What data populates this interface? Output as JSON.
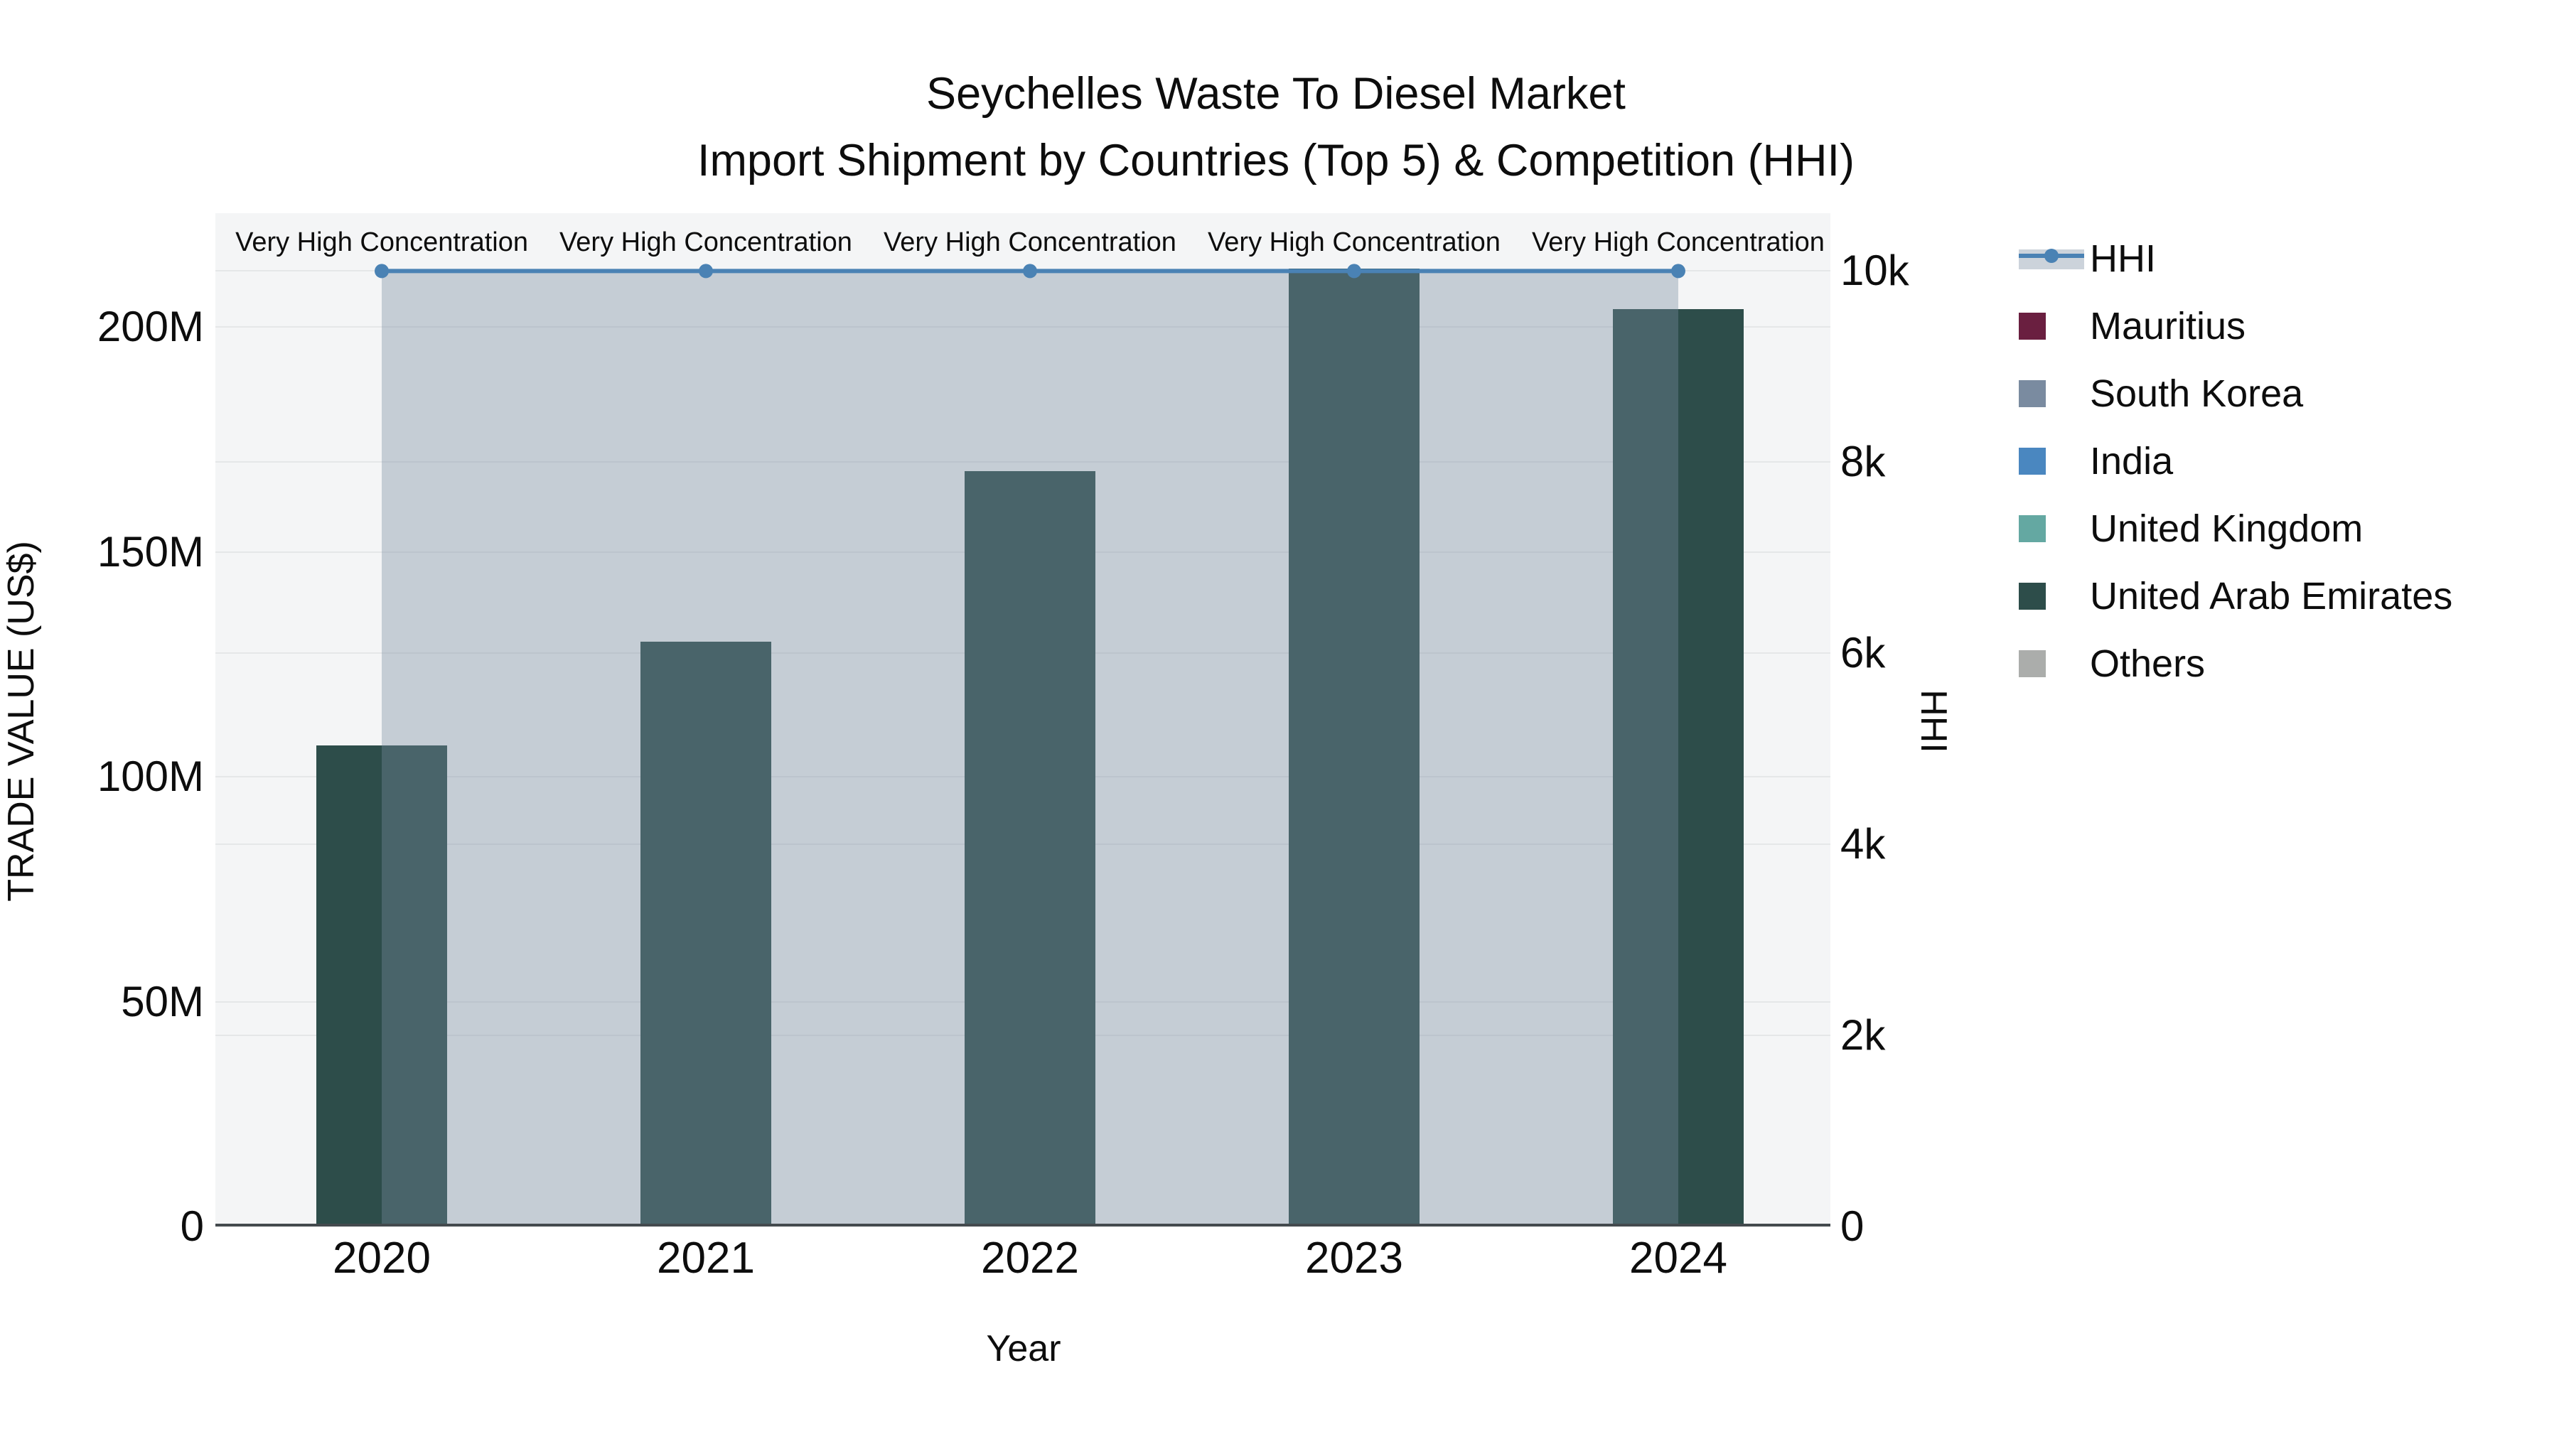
{
  "title": {
    "line1": "Seychelles Waste To Diesel Market",
    "line2": "Import Shipment by Countries (Top 5) & Competition (HHI)"
  },
  "chart_data": {
    "type": "bar+line",
    "title": "Seychelles Waste To Diesel Market Import Shipment by Countries (Top 5) & Competition (HHI)",
    "xlabel": "Year",
    "ylabel_left": "TRADE VALUE (US$)",
    "ylabel_right": "HHI",
    "categories": [
      "2020",
      "2021",
      "2022",
      "2023",
      "2024"
    ],
    "bar_series": [
      {
        "name": "Mauritius",
        "color": "#6a1f40",
        "values_usd": [
          0,
          0,
          0,
          0,
          0
        ]
      },
      {
        "name": "South Korea",
        "color": "#7a8ba0",
        "values_usd": [
          0,
          0,
          0,
          0,
          0
        ]
      },
      {
        "name": "India",
        "color": "#4a87c0",
        "values_usd": [
          0,
          0,
          0,
          0,
          0
        ]
      },
      {
        "name": "United Kingdom",
        "color": "#64a8a2",
        "values_usd": [
          0,
          0,
          0,
          0,
          0
        ]
      },
      {
        "name": "United Arab Emirates",
        "color": "#2d4d4a",
        "values_usd": [
          107000000,
          130000000,
          168000000,
          213000000,
          204000000
        ]
      },
      {
        "name": "Others",
        "color": "#abadab",
        "values_usd": [
          0,
          0,
          0,
          0,
          0
        ]
      }
    ],
    "line_series": {
      "name": "HHI",
      "color": "#4a82b4",
      "area_color": "rgba(122,139,160,0.38)",
      "values": [
        9995,
        9995,
        9995,
        9995,
        9995
      ]
    },
    "point_annotations": [
      "Very High Concentration",
      "Very High Concentration",
      "Very High Concentration",
      "Very High Concentration",
      "Very High Concentration"
    ],
    "y_left_ticks": [
      {
        "label": "0",
        "value": 0
      },
      {
        "label": "50M",
        "value": 50000000
      },
      {
        "label": "100M",
        "value": 100000000
      },
      {
        "label": "150M",
        "value": 150000000
      },
      {
        "label": "200M",
        "value": 200000000
      }
    ],
    "y_right_ticks": [
      {
        "label": "0",
        "value": 0
      },
      {
        "label": "2k",
        "value": 2000
      },
      {
        "label": "4k",
        "value": 4000
      },
      {
        "label": "6k",
        "value": 6000
      },
      {
        "label": "8k",
        "value": 8000
      },
      {
        "label": "10k",
        "value": 10000
      }
    ],
    "ylim_left": [
      0,
      225300000
    ],
    "ylim_right": [
      0,
      10600
    ],
    "grid": true,
    "legend_position": "right"
  },
  "styles": {
    "plot_bg": "#f4f5f6",
    "grid_color": "#e5e7e8",
    "axis_line_color": "#444a4e",
    "text_color": "#0d0d0d"
  }
}
